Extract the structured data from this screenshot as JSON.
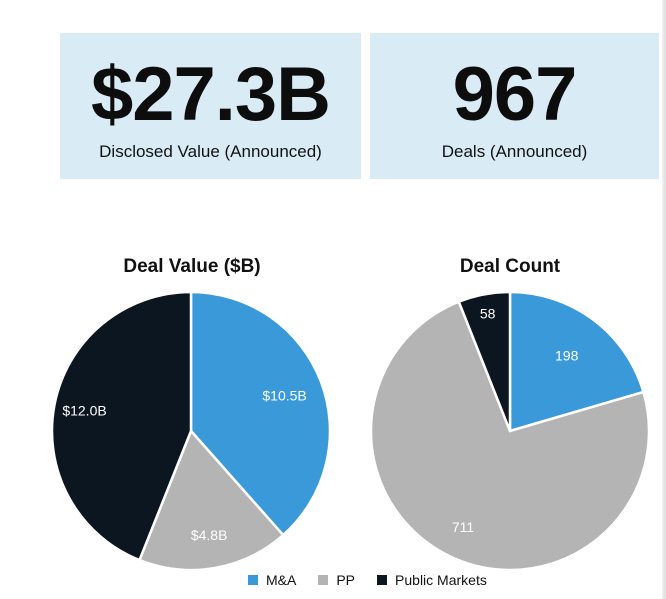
{
  "kpis": [
    {
      "value": "$27.3B",
      "label": "Disclosed Value (Announced)"
    },
    {
      "value": "967",
      "label": "Deals (Announced)"
    }
  ],
  "colors": {
    "ma": "#3a9ad9",
    "pp": "#b4b4b4",
    "public": "#0b1620"
  },
  "chart_data": [
    {
      "type": "pie",
      "title": "Deal Value ($B)",
      "categories": [
        "M&A",
        "PP",
        "Public Markets"
      ],
      "values": [
        10.5,
        4.8,
        12.0
      ],
      "labels": [
        "$10.5B",
        "$4.8B",
        "$12.0B"
      ]
    },
    {
      "type": "pie",
      "title": "Deal Count",
      "categories": [
        "M&A",
        "PP",
        "Public Markets"
      ],
      "values": [
        198,
        711,
        58
      ],
      "labels": [
        "198",
        "711",
        "58"
      ]
    }
  ],
  "legend": [
    {
      "label": "M&A",
      "color": "#3a9ad9"
    },
    {
      "label": "PP",
      "color": "#b4b4b4"
    },
    {
      "label": "Public Markets",
      "color": "#0b1620"
    }
  ]
}
